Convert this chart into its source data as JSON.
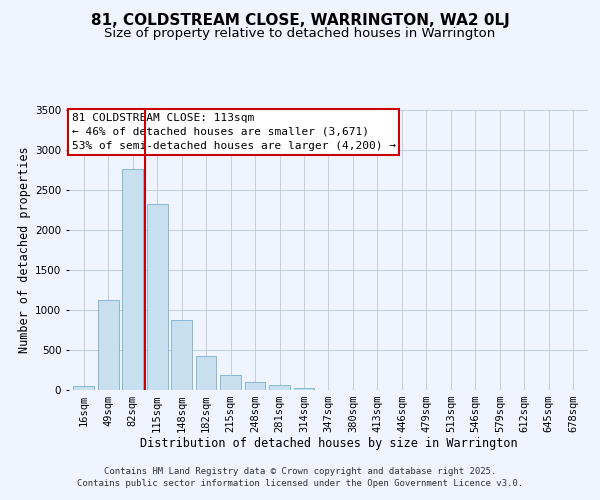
{
  "title": "81, COLDSTREAM CLOSE, WARRINGTON, WA2 0LJ",
  "subtitle": "Size of property relative to detached houses in Warrington",
  "xlabel": "Distribution of detached houses by size in Warrington",
  "ylabel": "Number of detached properties",
  "bar_labels": [
    "16sqm",
    "49sqm",
    "82sqm",
    "115sqm",
    "148sqm",
    "182sqm",
    "215sqm",
    "248sqm",
    "281sqm",
    "314sqm",
    "347sqm",
    "380sqm",
    "413sqm",
    "446sqm",
    "479sqm",
    "513sqm",
    "546sqm",
    "579sqm",
    "612sqm",
    "645sqm",
    "678sqm"
  ],
  "bar_values": [
    50,
    1120,
    2760,
    2330,
    870,
    430,
    190,
    100,
    60,
    30,
    5,
    2,
    1,
    0,
    0,
    0,
    0,
    0,
    0,
    0,
    0
  ],
  "bar_color": "#c8dff0",
  "bar_edgecolor": "#7ab0d4",
  "vline_pos": 2.5,
  "vline_color": "#cc0000",
  "ylim": [
    0,
    3500
  ],
  "yticks": [
    0,
    500,
    1000,
    1500,
    2000,
    2500,
    3000,
    3500
  ],
  "annotation_title": "81 COLDSTREAM CLOSE: 113sqm",
  "annotation_line1": "← 46% of detached houses are smaller (3,671)",
  "annotation_line2": "53% of semi-detached houses are larger (4,200) →",
  "annotation_box_facecolor": "#ffffff",
  "annotation_box_edgecolor": "#cc0000",
  "footer1": "Contains HM Land Registry data © Crown copyright and database right 2025.",
  "footer2": "Contains public sector information licensed under the Open Government Licence v3.0.",
  "title_fontsize": 11,
  "subtitle_fontsize": 9.5,
  "axis_label_fontsize": 8.5,
  "tick_fontsize": 7.5,
  "annotation_fontsize": 8,
  "footer_fontsize": 6.5,
  "bg_color": "#f0f4ff"
}
